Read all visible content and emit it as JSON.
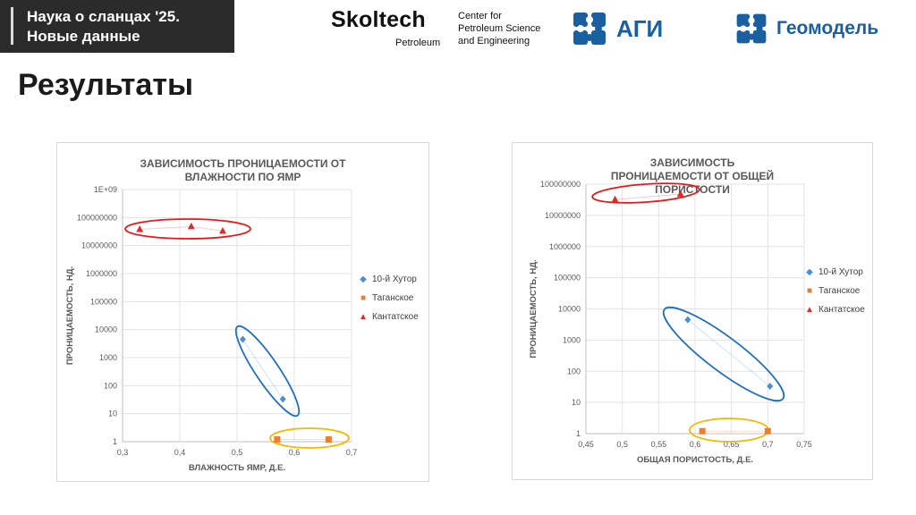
{
  "header": {
    "banner_line1": "Наука о сланцах '25.",
    "banner_line2": "Новые данные",
    "skoltech_name": "Skoltech",
    "skoltech_sub": "Petroleum",
    "skoltech_center": [
      "Center for",
      "Petroleum Science",
      "and Engineering"
    ],
    "agi_name": "АГИ",
    "geomodel_name": "Геомодель",
    "title": "Результаты"
  },
  "colors": {
    "series_khutor": "#4a90d0",
    "series_tagan": "#ed7d31",
    "series_kantat": "#e32b2b",
    "ellipse_blue": "#1f6fc0",
    "ellipse_red": "#e01b1b",
    "ellipse_yellow": "#f5b800",
    "logo_blue": "#1a5fa0"
  },
  "chart_data": [
    {
      "type": "scatter",
      "title": "ЗАВИСИМОСТЬ ПРОНИЦАЕМОСТИ ОТ ВЛАЖНОСТИ ПО ЯМР",
      "xlabel": "ВЛАЖНОСТЬ ЯМР, Д.Е.",
      "ylabel": "ПРОНИЦАЕМОСТЬ, НД.",
      "xlim": [
        0.3,
        0.7
      ],
      "x_ticks": [
        "0,3",
        "0,4",
        "0,5",
        "0,6",
        "0,7"
      ],
      "y_scale": "log",
      "ylim": [
        1,
        1000000000
      ],
      "y_ticks": [
        "1",
        "10",
        "100",
        "1000",
        "10000",
        "100000",
        "1000000",
        "10000000",
        "100000000",
        "1E+09"
      ],
      "grid": true,
      "legend_position": "right",
      "series": [
        {
          "name": "10-й Хутор",
          "marker": "diamond",
          "color": "#4a90d0",
          "points": [
            [
              0.51,
              4500
            ],
            [
              0.58,
              33
            ]
          ]
        },
        {
          "name": "Таганское",
          "marker": "square",
          "color": "#ed7d31",
          "points": [
            [
              0.57,
              1.2
            ],
            [
              0.66,
              1.2
            ]
          ]
        },
        {
          "name": "Кантатское",
          "marker": "triangle",
          "color": "#e32b2b",
          "points": [
            [
              0.33,
              38000000
            ],
            [
              0.42,
              48000000
            ],
            [
              0.475,
              33000000
            ]
          ]
        }
      ]
    },
    {
      "type": "scatter",
      "title": "ЗАВИСИМОСТЬ ПРОНИЦАЕМОСТИ ОТ ОБЩЕЙ ПОРИСТОСТИ",
      "xlabel": "ОБЩАЯ ПОРИСТОСТЬ, Д.Е.",
      "ylabel": "ПРОНИЦАЕМОСТЬ, НД.",
      "xlim": [
        0.45,
        0.75
      ],
      "x_ticks": [
        "0,45",
        "0,5",
        "0,55",
        "0,6",
        "0,65",
        "0,7",
        "0,75"
      ],
      "y_scale": "log",
      "ylim": [
        1,
        100000000
      ],
      "y_ticks": [
        "1",
        "10",
        "100",
        "1000",
        "10000",
        "100000",
        "1000000",
        "10000000",
        "100000000"
      ],
      "grid": true,
      "legend_position": "right",
      "series": [
        {
          "name": "10-й Хутор",
          "marker": "diamond",
          "color": "#4a90d0",
          "points": [
            [
              0.59,
              4500
            ],
            [
              0.703,
              33
            ]
          ]
        },
        {
          "name": "Таганское",
          "marker": "square",
          "color": "#ed7d31",
          "points": [
            [
              0.61,
              1.2
            ],
            [
              0.7,
              1.2
            ]
          ]
        },
        {
          "name": "Кантатское",
          "marker": "triangle",
          "color": "#e32b2b",
          "points": [
            [
              0.49,
              32000000
            ],
            [
              0.58,
              48000000
            ]
          ]
        }
      ]
    }
  ]
}
